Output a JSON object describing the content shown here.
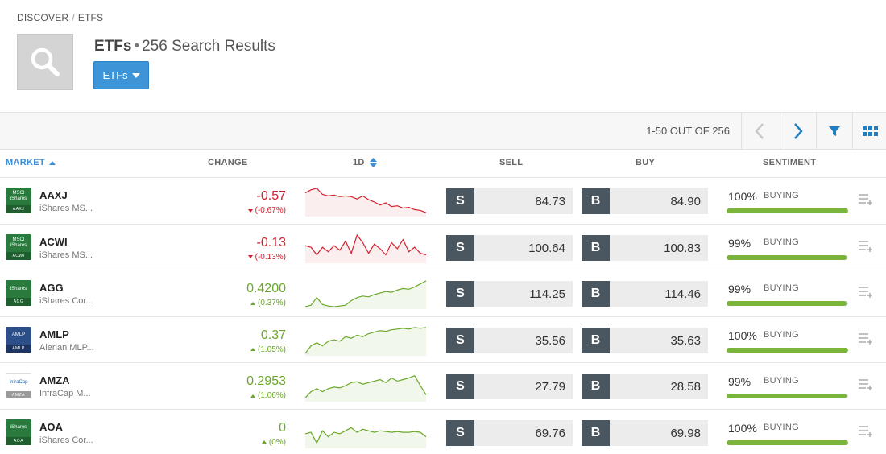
{
  "breadcrumb": {
    "root": "DISCOVER",
    "separator": "/",
    "current": "ETFS"
  },
  "header": {
    "title": "ETFs",
    "dot": "•",
    "subtitle": "256 Search Results",
    "filter_label": "ETFs"
  },
  "toolbar": {
    "pager_text": "1-50 OUT OF 256",
    "icons": [
      "chevron-left-icon",
      "chevron-right-icon",
      "filter-icon",
      "grid-view-icon"
    ]
  },
  "columns": {
    "market": "MARKET",
    "change": "CHANGE",
    "range": "1D",
    "sell": "SELL",
    "buy": "BUY",
    "sentiment": "SENTIMENT"
  },
  "colors": {
    "accent": "#3b8fd6",
    "negative": "#d1202f",
    "positive": "#6aa72a",
    "trade_button": "#4a5761",
    "sentiment_bar": "#7bb43a"
  },
  "rows": [
    {
      "ticker": "AAXJ",
      "name": "iShares MS...",
      "logo_top": "MSCI iShares",
      "logo_bottom": "AAXJ",
      "logo_color": "#2a7a3e",
      "change": "-0.57",
      "change_pct": "(-0.67%)",
      "direction": "down",
      "sell_letter": "S",
      "sell": "84.73",
      "buy_letter": "B",
      "buy": "84.90",
      "sentiment_pct": "100%",
      "sentiment_label": "BUYING",
      "sentiment_value": 100,
      "spark": [
        30,
        34,
        36,
        28,
        26,
        27,
        25,
        26,
        25,
        22,
        26,
        21,
        18,
        14,
        17,
        12,
        13,
        10,
        11,
        8,
        7,
        4
      ]
    },
    {
      "ticker": "ACWI",
      "name": "iShares MS...",
      "logo_top": "MSCI iShares",
      "logo_bottom": "ACWI",
      "logo_color": "#2a7a3e",
      "change": "-0.13",
      "change_pct": "(-0.13%)",
      "direction": "down",
      "sell_letter": "S",
      "sell": "100.64",
      "buy_letter": "B",
      "buy": "100.83",
      "sentiment_pct": "99%",
      "sentiment_label": "BUYING",
      "sentiment_value": 99,
      "spark": [
        22,
        20,
        10,
        20,
        14,
        22,
        16,
        28,
        12,
        36,
        26,
        12,
        24,
        18,
        10,
        26,
        18,
        30,
        14,
        20,
        12,
        10
      ]
    },
    {
      "ticker": "AGG",
      "name": "iShares Cor...",
      "logo_top": "iShares",
      "logo_bottom": "AGG",
      "logo_color": "#2a7a3e",
      "change": "0.4200",
      "change_pct": "(0.37%)",
      "direction": "up",
      "sell_letter": "S",
      "sell": "114.25",
      "buy_letter": "B",
      "buy": "114.46",
      "sentiment_pct": "99%",
      "sentiment_label": "BUYING",
      "sentiment_value": 99,
      "spark": [
        2,
        4,
        14,
        5,
        3,
        2,
        3,
        4,
        10,
        14,
        16,
        15,
        18,
        20,
        22,
        21,
        24,
        26,
        25,
        28,
        32,
        36
      ]
    },
    {
      "ticker": "AMLP",
      "name": "Alerian MLP...",
      "logo_top": "AMLP",
      "logo_bottom": "AMLP",
      "logo_color": "#2c4f8a",
      "change": "0.37",
      "change_pct": "(1.05%)",
      "direction": "up",
      "sell_letter": "S",
      "sell": "35.56",
      "buy_letter": "B",
      "buy": "35.63",
      "sentiment_pct": "100%",
      "sentiment_label": "BUYING",
      "sentiment_value": 100,
      "spark": [
        2,
        12,
        16,
        12,
        18,
        20,
        18,
        24,
        22,
        26,
        24,
        28,
        30,
        32,
        31,
        33,
        34,
        35,
        34,
        36,
        35,
        36
      ]
    },
    {
      "ticker": "AMZA",
      "name": "InfraCap M...",
      "logo_top": "InfraCap",
      "logo_bottom": "AMZA",
      "logo_color": "#ffffff",
      "change": "0.2953",
      "change_pct": "(1.06%)",
      "direction": "up",
      "sell_letter": "S",
      "sell": "27.79",
      "buy_letter": "B",
      "buy": "28.58",
      "sentiment_pct": "99%",
      "sentiment_label": "BUYING",
      "sentiment_value": 99,
      "spark": [
        4,
        12,
        16,
        12,
        16,
        18,
        17,
        20,
        24,
        25,
        22,
        24,
        26,
        28,
        24,
        30,
        26,
        28,
        30,
        33,
        20,
        8
      ]
    },
    {
      "ticker": "AOA",
      "name": "iShares Cor...",
      "logo_top": "iShares",
      "logo_bottom": "AOA",
      "logo_color": "#2a7a3e",
      "change": "0",
      "change_pct": "(0%)",
      "direction": "up",
      "sell_letter": "S",
      "sell": "69.76",
      "buy_letter": "B",
      "buy": "69.98",
      "sentiment_pct": "100%",
      "sentiment_label": "BUYING",
      "sentiment_value": 100,
      "spark": [
        18,
        20,
        6,
        22,
        14,
        20,
        18,
        22,
        26,
        20,
        24,
        22,
        20,
        22,
        21,
        20,
        21,
        20,
        20,
        21,
        20,
        14
      ]
    }
  ]
}
